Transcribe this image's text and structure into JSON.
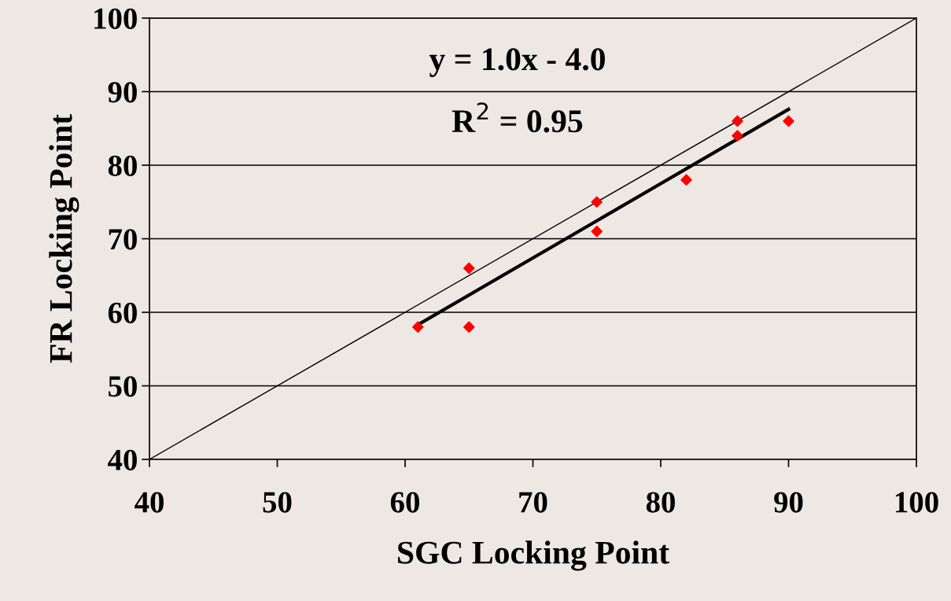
{
  "chart_data": {
    "type": "scatter",
    "xlabel": "SGC Locking Point",
    "ylabel": "FR Locking Point",
    "annotations": [
      "y = 1.0x - 4.0",
      "R$^{2}$ = 0.95"
    ],
    "series": [
      {
        "color": "#ff0000",
        "marker": "diamond",
        "x": [
          61,
          65,
          65,
          75,
          75,
          82,
          86,
          86,
          90
        ],
        "values": [
          58,
          66,
          58,
          75,
          71,
          78,
          86,
          84,
          86
        ]
      },
      {
        "type": "line",
        "color": "#000000",
        "marker": "none",
        "line_style": "solid",
        "x": [
          61,
          90
        ],
        "values": [
          58.3,
          87.6
        ]
      },
      {
        "type": "line",
        "color": "#000000",
        "marker": "none",
        "line_style": "solid",
        "x": [
          40,
          100
        ],
        "values": [
          40,
          100
        ]
      }
    ],
    "xlim": [
      40,
      100
    ],
    "ylim": [
      40,
      100
    ],
    "xticks": [
      40,
      50,
      60,
      70,
      80,
      90,
      100
    ],
    "yticks": [
      40,
      50,
      60,
      70,
      80,
      90,
      100
    ],
    "grid": "y",
    "legend": false
  }
}
